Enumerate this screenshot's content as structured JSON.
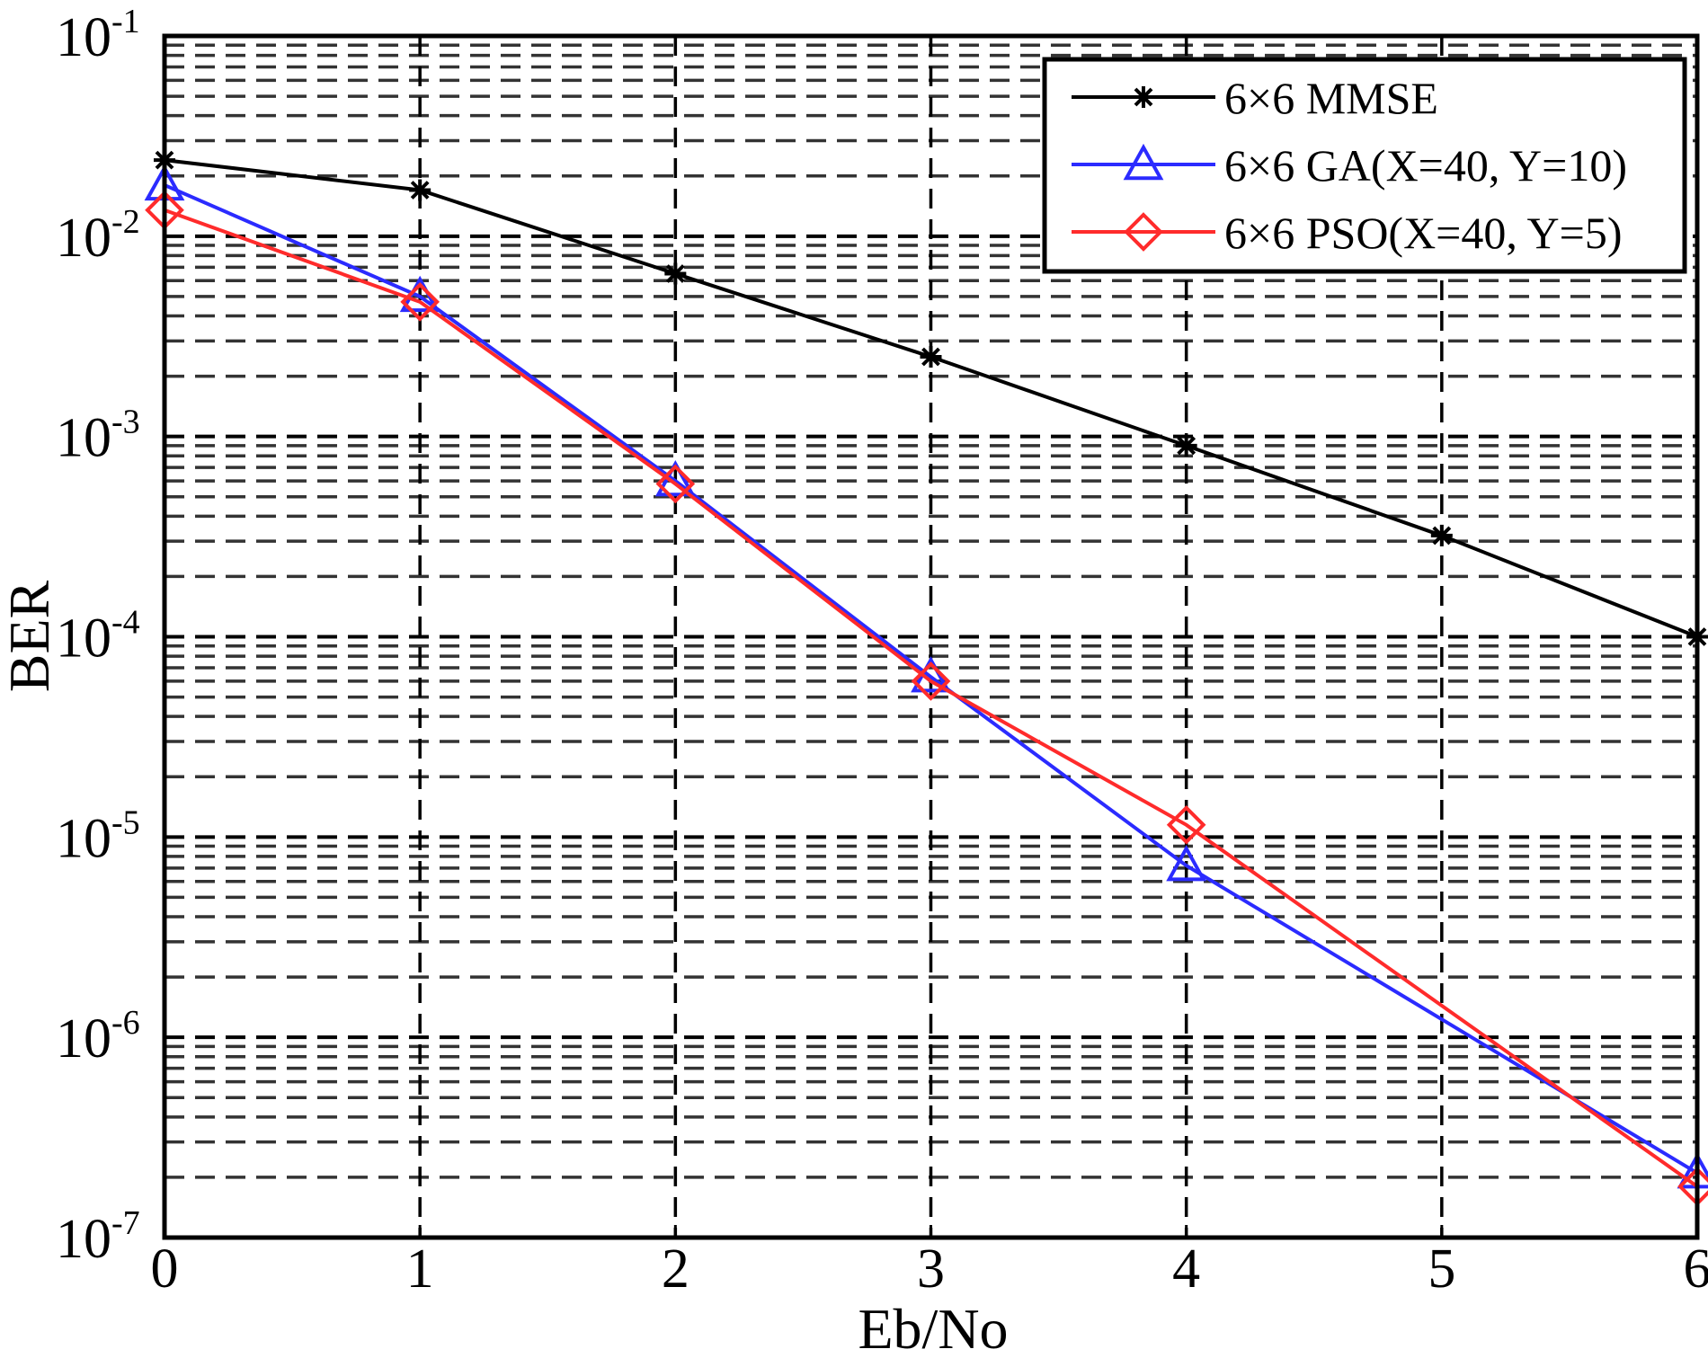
{
  "chart_data": {
    "type": "line",
    "xlabel": "Eb/No",
    "ylabel": "BER",
    "xlim": [
      0,
      6
    ],
    "ylim": [
      1e-07,
      0.1
    ],
    "yscale": "log",
    "grid": true,
    "x_ticks": [
      "0",
      "1",
      "2",
      "3",
      "4",
      "5",
      "6"
    ],
    "y_ticks": [
      {
        "base": "10",
        "exp": "-1",
        "value": 0.1
      },
      {
        "base": "10",
        "exp": "-2",
        "value": 0.01
      },
      {
        "base": "10",
        "exp": "-3",
        "value": 0.001
      },
      {
        "base": "10",
        "exp": "-4",
        "value": 0.0001
      },
      {
        "base": "10",
        "exp": "-5",
        "value": 1e-05
      },
      {
        "base": "10",
        "exp": "-6",
        "value": 1e-06
      },
      {
        "base": "10",
        "exp": "-7",
        "value": 1e-07
      }
    ],
    "legend_position": "top-right",
    "series": [
      {
        "name": "6×6 MMSE",
        "color": "#000000",
        "marker": "star",
        "x": [
          0,
          1,
          2,
          3,
          4,
          5,
          6
        ],
        "y": [
          0.024,
          0.017,
          0.0065,
          0.0025,
          0.0009,
          0.00032,
          0.0001
        ]
      },
      {
        "name": "6×6 GA(X=40, Y=10)",
        "color": "#2b2bff",
        "marker": "triangle",
        "x": [
          0,
          1,
          2,
          3,
          4,
          6
        ],
        "y": [
          0.018,
          0.005,
          0.0006,
          6.3e-05,
          7.2e-06,
          2.1e-07
        ]
      },
      {
        "name": "6×6 PSO(X=40, Y=5)",
        "color": "#ff2b2b",
        "marker": "diamond",
        "x": [
          0,
          1,
          2,
          3,
          4,
          6
        ],
        "y": [
          0.0135,
          0.0047,
          0.00058,
          6e-05,
          1.15e-05,
          1.8e-07
        ]
      }
    ]
  }
}
